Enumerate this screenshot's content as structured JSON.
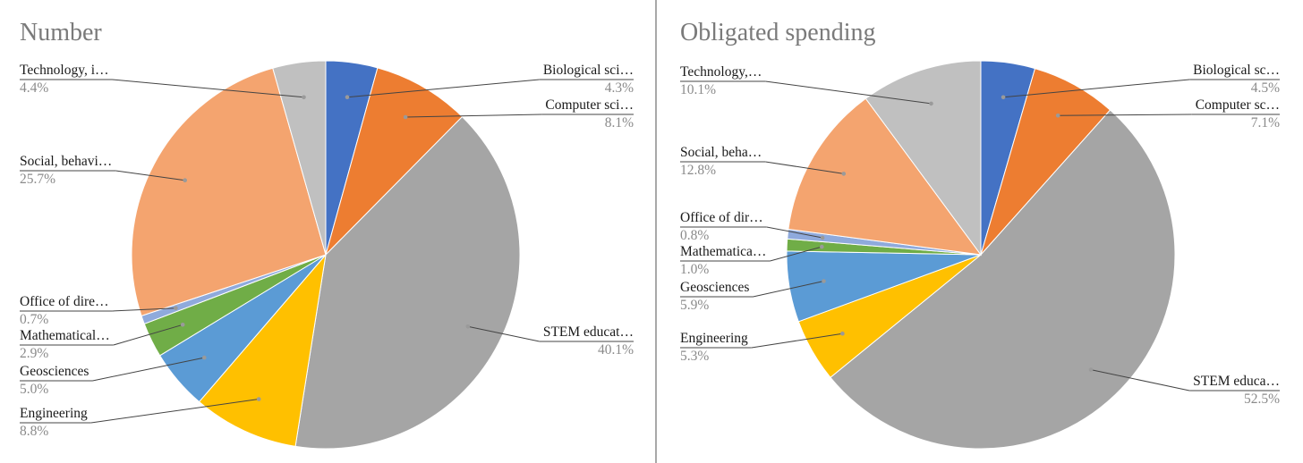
{
  "chart_data": [
    {
      "type": "pie",
      "title": "Number",
      "slices": [
        {
          "label": "Biological sci…",
          "value": 4.3,
          "pct_label": "4.3%",
          "color": "#4472c4"
        },
        {
          "label": "Computer sci…",
          "value": 8.1,
          "pct_label": "8.1%",
          "color": "#ed7d31"
        },
        {
          "label": "STEM educat…",
          "value": 40.1,
          "pct_label": "40.1%",
          "color": "#a5a5a5"
        },
        {
          "label": "Engineering",
          "value": 8.8,
          "pct_label": "8.8%",
          "color": "#ffc000"
        },
        {
          "label": "Geosciences",
          "value": 5.0,
          "pct_label": "5.0%",
          "color": "#5b9bd5"
        },
        {
          "label": "Mathematical…",
          "value": 2.9,
          "pct_label": "2.9%",
          "color": "#70ad47"
        },
        {
          "label": "Office of dire…",
          "value": 0.7,
          "pct_label": "0.7%",
          "color": "#8faadc"
        },
        {
          "label": "Social, behavi…",
          "value": 25.7,
          "pct_label": "25.7%",
          "color": "#f4a46f"
        },
        {
          "label": "Technology, i…",
          "value": 4.4,
          "pct_label": "4.4%",
          "color": "#c0c0c0"
        }
      ]
    },
    {
      "type": "pie",
      "title": "Obligated spending",
      "slices": [
        {
          "label": "Biological sc…",
          "value": 4.5,
          "pct_label": "4.5%",
          "color": "#4472c4"
        },
        {
          "label": "Computer sc…",
          "value": 7.1,
          "pct_label": "7.1%",
          "color": "#ed7d31"
        },
        {
          "label": "STEM educa…",
          "value": 52.5,
          "pct_label": "52.5%",
          "color": "#a5a5a5"
        },
        {
          "label": "Engineering",
          "value": 5.3,
          "pct_label": "5.3%",
          "color": "#ffc000"
        },
        {
          "label": "Geosciences",
          "value": 5.9,
          "pct_label": "5.9%",
          "color": "#5b9bd5"
        },
        {
          "label": "Mathematica…",
          "value": 1.0,
          "pct_label": "1.0%",
          "color": "#70ad47"
        },
        {
          "label": "Office of dir…",
          "value": 0.8,
          "pct_label": "0.8%",
          "color": "#8faadc"
        },
        {
          "label": "Social, beha…",
          "value": 12.8,
          "pct_label": "12.8%",
          "color": "#f4a46f"
        },
        {
          "label": "Technology,…",
          "value": 10.1,
          "pct_label": "10.1%",
          "color": "#c0c0c0"
        }
      ]
    }
  ]
}
